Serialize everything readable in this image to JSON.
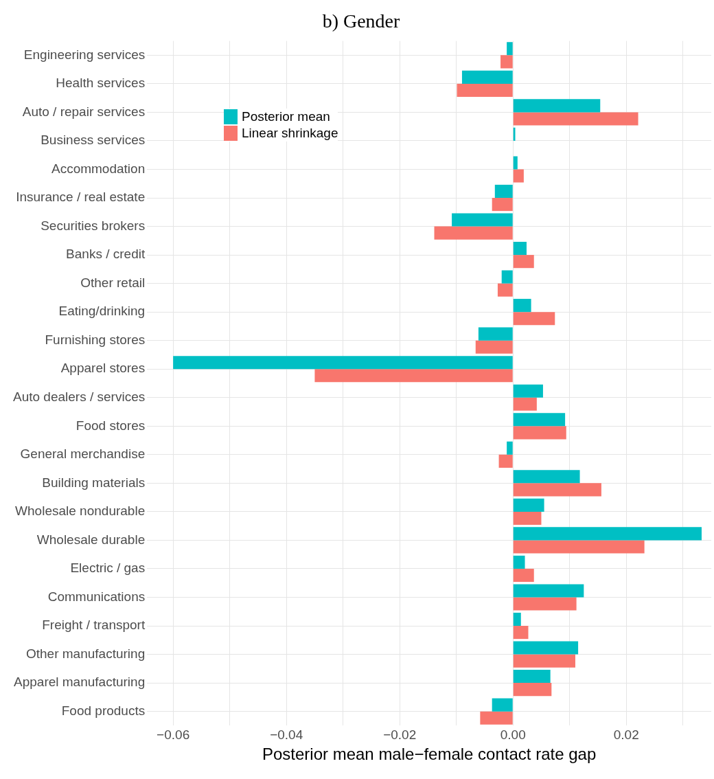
{
  "chart_data": {
    "type": "bar",
    "orientation": "horizontal",
    "title": "b) Gender",
    "xlabel": "Posterior mean male−female contact rate gap",
    "categories": [
      "Engineering services",
      "Health services",
      "Auto / repair services",
      "Business services",
      "Accommodation",
      "Insurance / real estate",
      "Securities brokers",
      "Banks / credit",
      "Other retail",
      "Eating/drinking",
      "Furnishing stores",
      "Apparel stores",
      "Auto dealers / services",
      "Food stores",
      "General merchandise",
      "Building materials",
      "Wholesale nondurable",
      "Wholesale durable",
      "Electric / gas",
      "Communications",
      "Freight / transport",
      "Other manufacturing",
      "Apparel manufacturing",
      "Food products"
    ],
    "series": [
      {
        "name": "Posterior mean",
        "color": "#00bfc4",
        "values": [
          -0.0011,
          -0.009,
          0.0154,
          0.0004,
          0.0008,
          -0.0032,
          -0.0108,
          0.0024,
          -0.002,
          0.0032,
          -0.0061,
          -0.06,
          0.0053,
          0.0092,
          -0.0011,
          0.0118,
          0.0055,
          0.0333,
          0.0021,
          0.0125,
          0.0014,
          0.0115,
          0.0066,
          -0.0037
        ]
      },
      {
        "name": "Linear shrinkage",
        "color": "#f8766d",
        "values": [
          -0.0022,
          -0.0099,
          0.0221,
          null,
          0.0019,
          -0.0037,
          -0.0139,
          0.0037,
          -0.0027,
          0.0074,
          -0.0066,
          -0.035,
          0.0042,
          0.0094,
          -0.0025,
          0.0156,
          0.005,
          0.0232,
          0.0037,
          0.0112,
          0.0027,
          0.011,
          0.0068,
          -0.0058
        ]
      }
    ],
    "xlim": [
      -0.0646,
      0.035
    ],
    "xticks": [
      {
        "value": -0.06,
        "label": "−0.06"
      },
      {
        "value": -0.05,
        "label": null
      },
      {
        "value": -0.04,
        "label": "−0.04"
      },
      {
        "value": -0.03,
        "label": null
      },
      {
        "value": -0.02,
        "label": "−0.02"
      },
      {
        "value": -0.01,
        "label": null
      },
      {
        "value": 0,
        "label": "0.00"
      },
      {
        "value": 0.01,
        "label": null
      },
      {
        "value": 0.02,
        "label": "0.02"
      },
      {
        "value": 0.03,
        "label": null
      }
    ],
    "grid": true,
    "legend": "top left"
  }
}
